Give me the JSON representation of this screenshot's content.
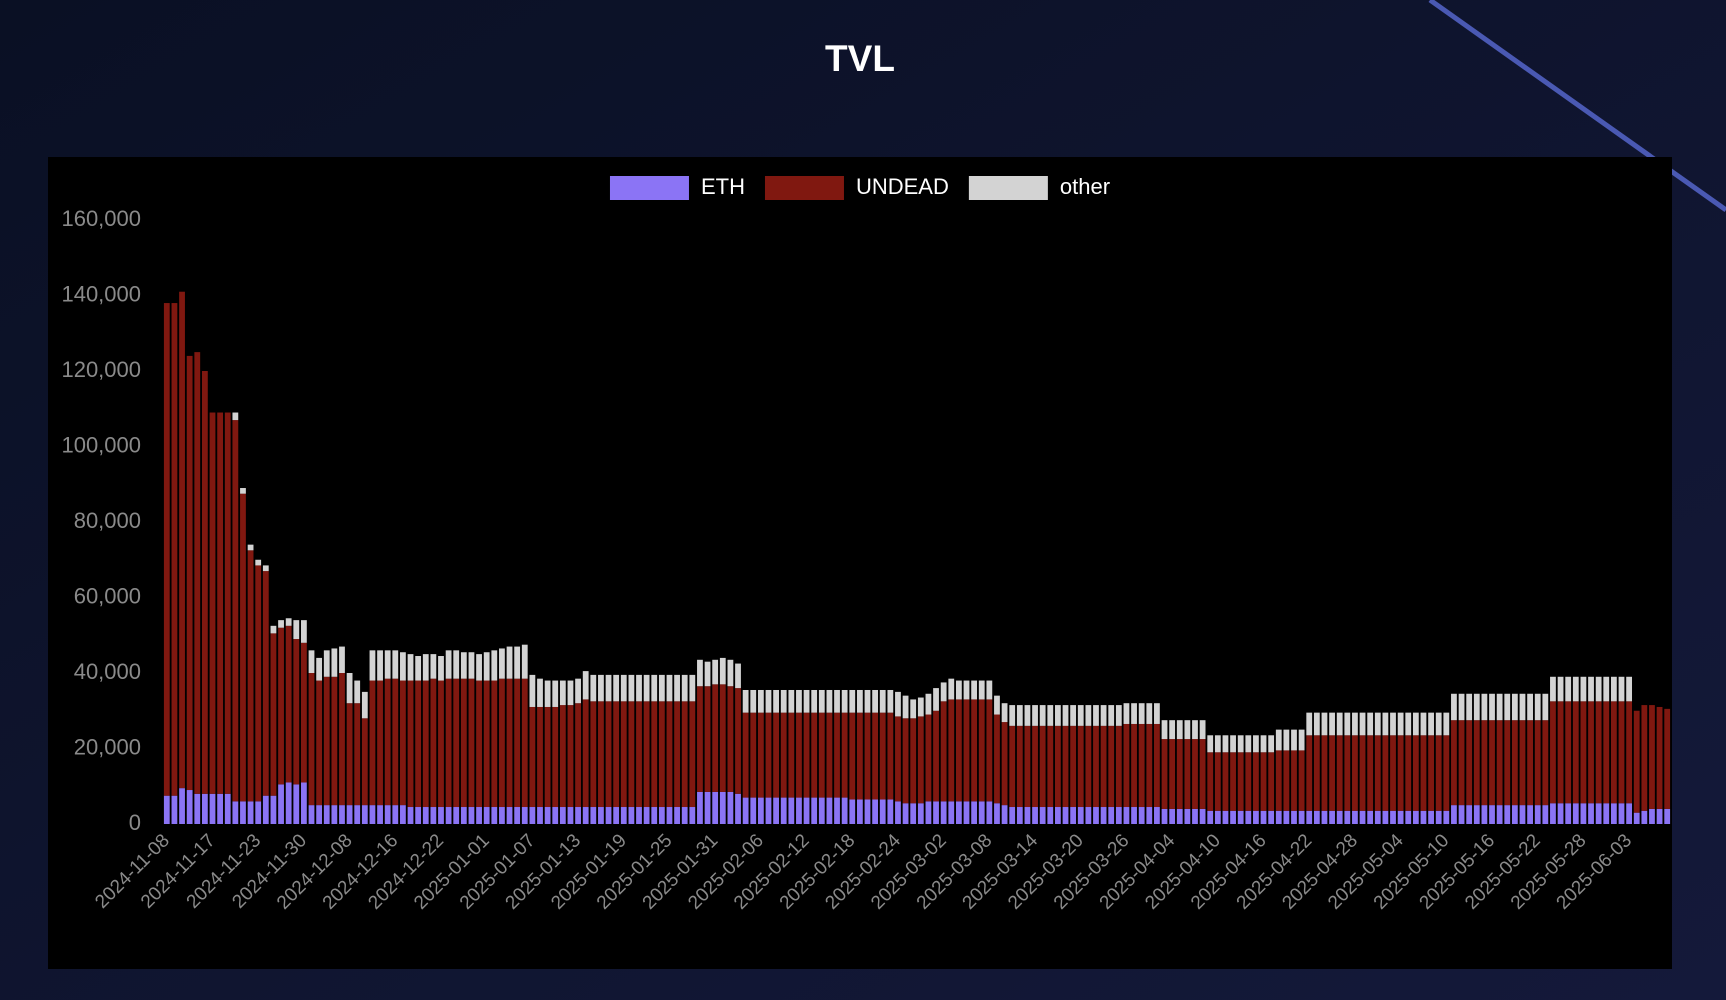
{
  "chart_data": {
    "type": "bar",
    "title": "TVL",
    "legend": "top",
    "stacked": true,
    "categories": [
      "2024-11-08",
      null,
      null,
      null,
      null,
      null,
      "2024-11-17",
      null,
      null,
      null,
      null,
      null,
      "2024-11-23",
      null,
      null,
      null,
      null,
      null,
      "2024-11-30",
      null,
      null,
      null,
      null,
      null,
      "2024-12-08",
      null,
      null,
      null,
      null,
      null,
      "2024-12-16",
      null,
      null,
      null,
      null,
      null,
      "2024-12-22",
      null,
      null,
      null,
      null,
      null,
      "2025-01-01",
      null,
      null,
      null,
      null,
      null,
      "2025-01-07",
      null,
      null,
      null,
      null,
      null,
      "2025-01-13",
      null,
      null,
      null,
      null,
      null,
      "2025-01-19",
      null,
      null,
      null,
      null,
      null,
      "2025-01-25",
      null,
      null,
      null,
      null,
      null,
      "2025-01-31",
      null,
      null,
      null,
      null,
      null,
      "2025-02-06",
      null,
      null,
      null,
      null,
      null,
      "2025-02-12",
      null,
      null,
      null,
      null,
      null,
      "2025-02-18",
      null,
      null,
      null,
      null,
      null,
      "2025-02-24",
      null,
      null,
      null,
      null,
      null,
      "2025-03-02",
      null,
      null,
      null,
      null,
      null,
      "2025-03-08",
      null,
      null,
      null,
      null,
      null,
      "2025-03-14",
      null,
      null,
      null,
      null,
      null,
      "2025-03-20",
      null,
      null,
      null,
      null,
      null,
      "2025-03-26",
      null,
      null,
      null,
      null,
      null,
      "2025-04-04",
      null,
      null,
      null,
      null,
      null,
      "2025-04-10",
      null,
      null,
      null,
      null,
      null,
      "2025-04-16",
      null,
      null,
      null,
      null,
      null,
      "2025-04-22",
      null,
      null,
      null,
      null,
      null,
      "2025-04-28",
      null,
      null,
      null,
      null,
      null,
      "2025-05-04",
      null,
      null,
      null,
      null,
      null,
      "2025-05-10",
      null,
      null,
      null,
      null,
      null,
      "2025-05-16",
      null,
      null,
      null,
      null,
      null,
      "2025-05-22",
      null,
      null,
      null,
      null,
      null,
      "2025-05-28",
      null,
      null,
      null,
      null,
      null,
      "2025-06-03",
      null,
      null,
      null,
      null,
      null
    ],
    "series": [
      {
        "name": "ETH",
        "color": "#8b74f5",
        "values": [
          7500,
          7500,
          9500,
          9000,
          8000,
          8000,
          8000,
          8000,
          8000,
          6000,
          6000,
          6000,
          6000,
          7500,
          7500,
          10500,
          11000,
          10500,
          11000,
          5000,
          5000,
          5000,
          5000,
          5000,
          5000,
          5000,
          5000,
          5000,
          5000,
          5000,
          5000,
          5000,
          4500,
          4500,
          4500,
          4500,
          4500,
          4500,
          4500,
          4500,
          4500,
          4500,
          4500,
          4500,
          4500,
          4500,
          4500,
          4500,
          4500,
          4500,
          4500,
          4500,
          4500,
          4500,
          4500,
          4500,
          4500,
          4500,
          4500,
          4500,
          4500,
          4500,
          4500,
          4500,
          4500,
          4500,
          4500,
          4500,
          4500,
          4500,
          8500,
          8500,
          8500,
          8500,
          8500,
          8000,
          7000,
          7000,
          7000,
          7000,
          7000,
          7000,
          7000,
          7000,
          7000,
          7000,
          7000,
          7000,
          7000,
          7000,
          6500,
          6500,
          6500,
          6500,
          6500,
          6500,
          6000,
          5500,
          5500,
          5500,
          6000,
          6000,
          6000,
          6000,
          6000,
          6000,
          6000,
          6000,
          6000,
          5500,
          5000,
          4500,
          4500,
          4500,
          4500,
          4500,
          4500,
          4500,
          4500,
          4500,
          4500,
          4500,
          4500,
          4500,
          4500,
          4500,
          4500,
          4500,
          4500,
          4500,
          4500,
          4000,
          4000,
          4000,
          4000,
          4000,
          4000,
          3500,
          3500,
          3500,
          3500,
          3500,
          3500,
          3500,
          3500,
          3500,
          3500,
          3500,
          3500,
          3500,
          3500,
          3500,
          3500,
          3500,
          3500,
          3500,
          3500,
          3500,
          3500,
          3500,
          3500,
          3500,
          3500,
          3500,
          3500,
          3500,
          3500,
          3500,
          3500,
          5000,
          5000,
          5000,
          5000,
          5000,
          5000,
          5000,
          5000,
          5000,
          5000,
          5000,
          5000,
          5000,
          5500,
          5500,
          5500,
          5500,
          5500,
          5500,
          5500,
          5500,
          5500,
          5500,
          5500,
          3000,
          3500,
          4000,
          4000,
          4000
        ]
      },
      {
        "name": "UNDEAD",
        "color": "#801810",
        "values": [
          130500,
          130500,
          131500,
          115000,
          117000,
          112000,
          101000,
          101000,
          101000,
          101000,
          81500,
          66500,
          62500,
          59500,
          43000,
          41500,
          41500,
          38500,
          37000,
          35000,
          33000,
          34000,
          34000,
          35000,
          27000,
          27000,
          23000,
          33000,
          33000,
          33500,
          33500,
          33000,
          33500,
          33500,
          33500,
          34000,
          33500,
          34000,
          34000,
          34000,
          34000,
          33500,
          33500,
          33500,
          34000,
          34000,
          34000,
          34000,
          26500,
          26500,
          26500,
          26500,
          27000,
          27000,
          27500,
          28500,
          28000,
          28000,
          28000,
          28000,
          28000,
          28000,
          28000,
          28000,
          28000,
          28000,
          28000,
          28000,
          28000,
          28000,
          28000,
          28000,
          28500,
          28500,
          28000,
          28000,
          22500,
          22500,
          22500,
          22500,
          22500,
          22500,
          22500,
          22500,
          22500,
          22500,
          22500,
          22500,
          22500,
          22500,
          23000,
          23000,
          23000,
          23000,
          23000,
          23000,
          22500,
          22500,
          22500,
          23000,
          23000,
          24000,
          26500,
          27000,
          27000,
          27000,
          27000,
          27000,
          27000,
          23500,
          22000,
          21500,
          21500,
          21500,
          21500,
          21500,
          21500,
          21500,
          21500,
          21500,
          21500,
          21500,
          21500,
          21500,
          21500,
          21500,
          22000,
          22000,
          22000,
          22000,
          22000,
          18500,
          18500,
          18500,
          18500,
          18500,
          18500,
          15500,
          15500,
          15500,
          15500,
          15500,
          15500,
          15500,
          15500,
          15500,
          16000,
          16000,
          16000,
          16000,
          20000,
          20000,
          20000,
          20000,
          20000,
          20000,
          20000,
          20000,
          20000,
          20000,
          20000,
          20000,
          20000,
          20000,
          20000,
          20000,
          20000,
          20000,
          20000,
          22500,
          22500,
          22500,
          22500,
          22500,
          22500,
          22500,
          22500,
          22500,
          22500,
          22500,
          22500,
          22500,
          27000,
          27000,
          27000,
          27000,
          27000,
          27000,
          27000,
          27000,
          27000,
          27000,
          27000,
          27000,
          28000,
          27500,
          27000,
          26500
        ]
      },
      {
        "name": "other",
        "color": "#d3d3d3",
        "values": [
          0,
          0,
          0,
          0,
          0,
          0,
          0,
          0,
          0,
          2000,
          1500,
          1500,
          1500,
          1500,
          2000,
          2000,
          2000,
          5000,
          6000,
          6000,
          6000,
          7000,
          7500,
          7000,
          8000,
          6000,
          7000,
          8000,
          8000,
          7500,
          7500,
          7500,
          7000,
          6500,
          7000,
          6500,
          6500,
          7500,
          7500,
          7000,
          7000,
          7000,
          7500,
          8000,
          8000,
          8500,
          8500,
          9000,
          8500,
          7500,
          7000,
          7000,
          6500,
          6500,
          6500,
          7500,
          7000,
          7000,
          7000,
          7000,
          7000,
          7000,
          7000,
          7000,
          7000,
          7000,
          7000,
          7000,
          7000,
          7000,
          7000,
          6500,
          6500,
          7000,
          7000,
          6500,
          6000,
          6000,
          6000,
          6000,
          6000,
          6000,
          6000,
          6000,
          6000,
          6000,
          6000,
          6000,
          6000,
          6000,
          6000,
          6000,
          6000,
          6000,
          6000,
          6000,
          6500,
          6000,
          5000,
          5000,
          5500,
          6000,
          5000,
          5500,
          5000,
          5000,
          5000,
          5000,
          5000,
          5000,
          5000,
          5500,
          5500,
          5500,
          5500,
          5500,
          5500,
          5500,
          5500,
          5500,
          5500,
          5500,
          5500,
          5500,
          5500,
          5500,
          5500,
          5500,
          5500,
          5500,
          5500,
          5000,
          5000,
          5000,
          5000,
          5000,
          5000,
          4500,
          4500,
          4500,
          4500,
          4500,
          4500,
          4500,
          4500,
          4500,
          5500,
          5500,
          5500,
          5500,
          6000,
          6000,
          6000,
          6000,
          6000,
          6000,
          6000,
          6000,
          6000,
          6000,
          6000,
          6000,
          6000,
          6000,
          6000,
          6000,
          6000,
          6000,
          6000,
          7000,
          7000,
          7000,
          7000,
          7000,
          7000,
          7000,
          7000,
          7000,
          7000,
          7000,
          7000,
          7000,
          6500,
          6500,
          6500,
          6500,
          6500,
          6500,
          6500,
          6500,
          6500,
          6500,
          6500,
          0,
          0,
          0,
          0,
          0
        ]
      }
    ],
    "ylim": [
      0,
      160000
    ],
    "yticks": [
      0,
      {
        "value": 20000,
        "label": "20,000"
      },
      {
        "value": 40000,
        "label": "40,000"
      },
      {
        "value": 60000,
        "label": "60,000"
      },
      {
        "value": 80000,
        "label": "80,000"
      },
      {
        "value": 100000,
        "label": "100,000"
      },
      {
        "value": 120000,
        "label": "120,000"
      },
      {
        "value": 140000,
        "label": "140,000"
      },
      {
        "value": 160000,
        "label": "160,000"
      }
    ]
  }
}
